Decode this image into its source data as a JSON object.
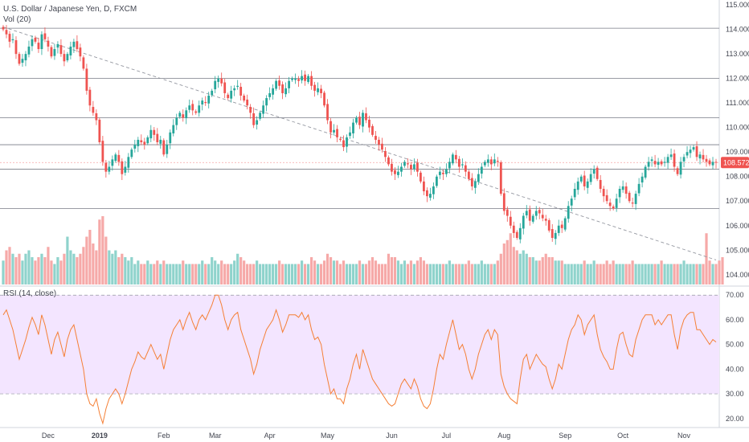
{
  "header": {
    "symbol_title": "U.S. Dollar / Japanese Yen, D, FXCM",
    "volume_label": "Vol (20)",
    "rsi_label": "RSI (14, close)"
  },
  "colors": {
    "up": "#26a69a",
    "down": "#ef5350",
    "vol_up": "#8fd3cc",
    "vol_down": "#f6a9a8",
    "rsi_line": "#f57f35",
    "rsi_band": "#f3e5ff",
    "hline": "#787b86",
    "trend": "#9598a1",
    "price_line": "#f5a3a3"
  },
  "chart_data": [
    {
      "type": "candlestick",
      "title": "U.S. Dollar / Japanese Yen, D, FXCM",
      "y_axis": {
        "ylim": [
          103.6,
          115.2
        ],
        "ticks": [
          "115.000",
          "114.000",
          "113.000",
          "112.000",
          "111.000",
          "110.000",
          "109.000",
          "108.000",
          "107.000",
          "106.000",
          "105.000",
          "104.000"
        ],
        "side": "right"
      },
      "x_axis": {
        "labels": [
          {
            "text": "Dec",
            "bar": 14,
            "bold": false
          },
          {
            "text": "2019",
            "bar": 30,
            "bold": true
          },
          {
            "text": "Feb",
            "bar": 50,
            "bold": false
          },
          {
            "text": "Mar",
            "bar": 66,
            "bold": false
          },
          {
            "text": "Apr",
            "bar": 83,
            "bold": false
          },
          {
            "text": "May",
            "bar": 101,
            "bold": false
          },
          {
            "text": "Jun",
            "bar": 121,
            "bold": false
          },
          {
            "text": "Jul",
            "bar": 138,
            "bold": false
          },
          {
            "text": "Aug",
            "bar": 156,
            "bold": false
          },
          {
            "text": "Sep",
            "bar": 175,
            "bold": false
          },
          {
            "text": "Oct",
            "bar": 193,
            "bold": false
          },
          {
            "text": "Nov",
            "bar": 212,
            "bold": false
          }
        ]
      },
      "last_price": "108.572",
      "last_value": 108.572,
      "horizontal_levels": [
        114.05,
        112.0,
        110.4,
        109.3,
        108.3,
        106.7
      ],
      "trendline": {
        "from": {
          "bar": 0,
          "value": 114.1
        },
        "to": {
          "bar": 222,
          "value": 104.6
        }
      },
      "closes": [
        114.0,
        113.8,
        113.5,
        113.6,
        113.0,
        112.6,
        112.8,
        113.0,
        113.3,
        113.6,
        113.5,
        113.2,
        113.8,
        113.6,
        113.3,
        112.9,
        113.2,
        113.4,
        113.0,
        112.7,
        113.0,
        113.3,
        113.5,
        113.2,
        112.9,
        112.4,
        111.5,
        110.9,
        110.6,
        110.3,
        109.4,
        108.6,
        108.2,
        108.4,
        108.7,
        108.9,
        108.6,
        108.1,
        108.4,
        108.8,
        109.1,
        109.3,
        109.5,
        109.4,
        109.3,
        109.6,
        109.9,
        109.7,
        109.4,
        109.5,
        108.9,
        109.3,
        109.8,
        110.1,
        110.4,
        110.6,
        110.4,
        110.7,
        110.9,
        110.7,
        110.6,
        110.9,
        111.1,
        111.0,
        111.3,
        111.5,
        111.9,
        112.0,
        111.8,
        111.4,
        111.2,
        111.5,
        111.6,
        111.7,
        111.3,
        111.1,
        110.9,
        110.6,
        110.1,
        110.3,
        110.6,
        110.9,
        111.2,
        111.4,
        111.6,
        111.9,
        111.7,
        111.4,
        111.6,
        111.9,
        112.0,
        112.0,
        111.9,
        112.1,
        111.9,
        112.1,
        111.7,
        111.5,
        111.6,
        111.4,
        110.9,
        110.3,
        109.8,
        109.9,
        109.6,
        109.5,
        109.2,
        109.6,
        109.8,
        110.2,
        110.4,
        110.1,
        110.6,
        110.3,
        110.0,
        109.7,
        109.5,
        109.3,
        109.1,
        108.8,
        108.5,
        108.2,
        108.1,
        108.2,
        108.4,
        108.6,
        108.5,
        108.3,
        108.5,
        108.2,
        107.8,
        107.4,
        107.2,
        107.3,
        107.6,
        108.0,
        108.2,
        108.1,
        108.3,
        108.6,
        108.9,
        108.7,
        108.4,
        108.5,
        108.2,
        107.9,
        107.6,
        107.8,
        108.1,
        108.4,
        108.6,
        108.7,
        108.5,
        108.7,
        108.6,
        107.3,
        106.6,
        106.4,
        106.0,
        105.7,
        105.5,
        105.9,
        106.4,
        106.6,
        106.2,
        106.4,
        106.6,
        106.5,
        106.3,
        106.2,
        105.8,
        105.5,
        105.7,
        106.0,
        105.9,
        106.3,
        106.8,
        107.1,
        107.5,
        107.8,
        108.0,
        107.6,
        107.8,
        108.1,
        108.3,
        107.9,
        107.5,
        107.2,
        107.0,
        106.8,
        106.7,
        107.1,
        107.5,
        107.6,
        107.3,
        107.0,
        106.9,
        107.3,
        107.7,
        108.0,
        108.4,
        108.6,
        108.7,
        108.5,
        108.6,
        108.5,
        108.6,
        108.8,
        108.9,
        108.4,
        108.1,
        108.6,
        108.8,
        109.0,
        109.1,
        109.2,
        108.8,
        108.9,
        108.7,
        108.6,
        108.5,
        108.6,
        108.572
      ],
      "volumes": [
        0.35,
        0.5,
        0.55,
        0.45,
        0.4,
        0.45,
        0.35,
        0.45,
        0.5,
        0.4,
        0.35,
        0.4,
        0.45,
        0.4,
        0.55,
        0.35,
        0.3,
        0.4,
        0.35,
        0.45,
        0.7,
        0.5,
        0.45,
        0.4,
        0.45,
        0.55,
        0.7,
        0.8,
        0.6,
        0.5,
        0.95,
        1.0,
        0.7,
        0.5,
        0.45,
        0.5,
        0.4,
        0.45,
        0.4,
        0.35,
        0.4,
        0.3,
        0.35,
        0.3,
        0.3,
        0.35,
        0.3,
        0.3,
        0.35,
        0.3,
        0.35,
        0.3,
        0.3,
        0.3,
        0.3,
        0.3,
        0.35,
        0.3,
        0.3,
        0.3,
        0.3,
        0.3,
        0.35,
        0.3,
        0.3,
        0.4,
        0.35,
        0.3,
        0.35,
        0.3,
        0.3,
        0.3,
        0.35,
        0.45,
        0.4,
        0.35,
        0.3,
        0.3,
        0.3,
        0.35,
        0.3,
        0.3,
        0.3,
        0.3,
        0.3,
        0.3,
        0.35,
        0.3,
        0.3,
        0.3,
        0.3,
        0.3,
        0.3,
        0.35,
        0.3,
        0.3,
        0.4,
        0.35,
        0.3,
        0.3,
        0.35,
        0.45,
        0.4,
        0.35,
        0.35,
        0.3,
        0.35,
        0.3,
        0.3,
        0.3,
        0.3,
        0.35,
        0.3,
        0.3,
        0.35,
        0.4,
        0.35,
        0.3,
        0.3,
        0.3,
        0.45,
        0.4,
        0.4,
        0.35,
        0.3,
        0.35,
        0.3,
        0.35,
        0.3,
        0.35,
        0.4,
        0.35,
        0.3,
        0.3,
        0.3,
        0.3,
        0.3,
        0.3,
        0.3,
        0.35,
        0.3,
        0.3,
        0.3,
        0.3,
        0.3,
        0.35,
        0.3,
        0.3,
        0.3,
        0.35,
        0.3,
        0.3,
        0.3,
        0.3,
        0.35,
        0.45,
        0.6,
        0.65,
        0.75,
        0.55,
        0.5,
        0.45,
        0.5,
        0.45,
        0.4,
        0.4,
        0.35,
        0.35,
        0.4,
        0.45,
        0.4,
        0.4,
        0.35,
        0.35,
        0.35,
        0.3,
        0.3,
        0.3,
        0.3,
        0.3,
        0.3,
        0.35,
        0.3,
        0.3,
        0.35,
        0.3,
        0.3,
        0.3,
        0.35,
        0.3,
        0.35,
        0.3,
        0.3,
        0.3,
        0.3,
        0.3,
        0.35,
        0.3,
        0.3,
        0.3,
        0.3,
        0.3,
        0.3,
        0.3,
        0.3,
        0.35,
        0.3,
        0.3,
        0.3,
        0.3,
        0.3,
        0.3,
        0.35,
        0.3,
        0.3,
        0.3,
        0.3,
        0.3,
        0.3,
        0.75,
        0.35,
        0.3,
        0.3,
        0.35,
        0.4
      ]
    },
    {
      "type": "line",
      "title": "RSI (14, close)",
      "y_axis": {
        "ylim": [
          17,
          73
        ],
        "ticks": [
          "70.00",
          "60.00",
          "50.00",
          "40.00",
          "30.00",
          "20.00"
        ],
        "side": "right"
      },
      "band": {
        "upper": 70,
        "lower": 30
      },
      "values": [
        62,
        64,
        60,
        56,
        50,
        44,
        48,
        52,
        57,
        61,
        58,
        54,
        62,
        58,
        52,
        46,
        52,
        55,
        50,
        45,
        52,
        56,
        58,
        52,
        46,
        40,
        30,
        26,
        25,
        28,
        22,
        18,
        24,
        28,
        30,
        32,
        30,
        26,
        30,
        35,
        40,
        43,
        47,
        45,
        44,
        47,
        50,
        47,
        44,
        46,
        40,
        46,
        52,
        56,
        58,
        60,
        56,
        60,
        63,
        59,
        56,
        60,
        62,
        60,
        63,
        66,
        70,
        70,
        66,
        60,
        56,
        60,
        62,
        63,
        56,
        52,
        48,
        44,
        38,
        42,
        48,
        52,
        56,
        58,
        60,
        64,
        60,
        55,
        58,
        62,
        62,
        62,
        61,
        63,
        60,
        62,
        56,
        52,
        53,
        50,
        42,
        36,
        30,
        32,
        28,
        28,
        26,
        32,
        36,
        42,
        46,
        40,
        48,
        44,
        40,
        36,
        34,
        32,
        30,
        28,
        26,
        25,
        26,
        30,
        34,
        36,
        34,
        32,
        36,
        33,
        28,
        25,
        24,
        26,
        32,
        40,
        46,
        44,
        50,
        55,
        60,
        54,
        48,
        50,
        46,
        40,
        36,
        40,
        46,
        50,
        54,
        56,
        52,
        56,
        54,
        38,
        33,
        30,
        28,
        27,
        26,
        36,
        44,
        46,
        40,
        43,
        46,
        44,
        42,
        41,
        36,
        32,
        36,
        42,
        40,
        46,
        52,
        56,
        58,
        62,
        60,
        54,
        58,
        60,
        62,
        54,
        48,
        45,
        43,
        40,
        40,
        48,
        54,
        55,
        50,
        46,
        45,
        52,
        56,
        60,
        62,
        62,
        62,
        58,
        60,
        58,
        60,
        62,
        62,
        54,
        48,
        56,
        60,
        62,
        63,
        63,
        56,
        56,
        54,
        52,
        50,
        52,
        51
      ]
    }
  ]
}
